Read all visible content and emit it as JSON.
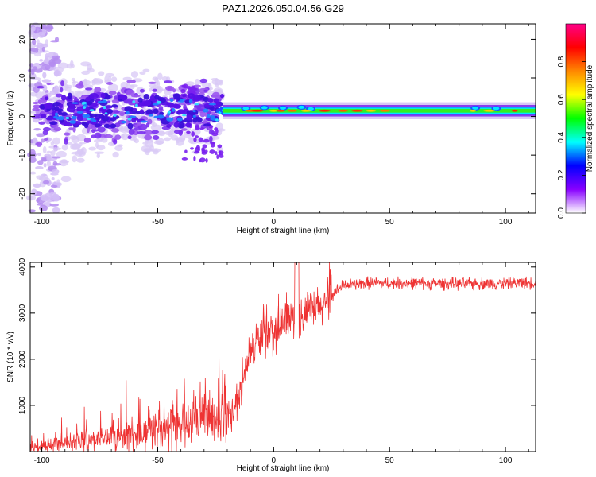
{
  "title": "PAZ1.2026.050.04.56.G29",
  "chart_data": [
    {
      "type": "heatmap",
      "xlabel": "Height of straight line (km)",
      "ylabel": "Frequency (Hz)",
      "xlim": [
        -105,
        113
      ],
      "ylim": [
        -25,
        24
      ],
      "xticks": [
        -100,
        -50,
        0,
        50,
        100
      ],
      "xtick_labels": [
        "-100",
        "-50",
        "0",
        "50",
        "100"
      ],
      "yticks": [
        -20,
        -10,
        0,
        10,
        20
      ],
      "ytick_labels": [
        "-20",
        "-10",
        "0",
        "10",
        "20"
      ],
      "colorbar": {
        "label": "Normalized spectral amplitude",
        "range": [
          0,
          1
        ],
        "ticks": [
          0.0,
          0.2,
          0.4,
          0.6,
          0.8
        ],
        "tick_labels": [
          "0.0",
          "0.2",
          "0.4",
          "0.6",
          "0.8"
        ],
        "colors": [
          "#ffffff",
          "#8800ff",
          "#0000ff",
          "#00ffff",
          "#00ff00",
          "#ffff00",
          "#ff8800",
          "#ff0000",
          "#ff0088"
        ]
      },
      "band": {
        "center_freq": 1.5,
        "clean_start_km": -22,
        "noisy_end_km": -22
      }
    },
    {
      "type": "line",
      "xlabel": "Height of straight line (km)",
      "ylabel": "SNR (10 * v/v)",
      "xlim": [
        -105,
        113
      ],
      "ylim": [
        0,
        4100
      ],
      "xticks": [
        -100,
        -50,
        0,
        50,
        100
      ],
      "xtick_labels": [
        "-100",
        "-50",
        "0",
        "50",
        "100"
      ],
      "yticks": [
        1000,
        2000,
        3000,
        4000
      ],
      "ytick_labels": [
        "1000",
        "2000",
        "3000",
        "4000"
      ],
      "line_color": "#ee3333",
      "trend": {
        "x": [
          -105,
          -90,
          -75,
          -60,
          -45,
          -30,
          -20,
          -15,
          -10,
          -5,
          0,
          5,
          10,
          15,
          20,
          25,
          30,
          40,
          60,
          80,
          100,
          113
        ],
        "y": [
          80,
          180,
          280,
          380,
          500,
          700,
          800,
          1200,
          2200,
          2500,
          2600,
          2800,
          2900,
          3000,
          3100,
          3400,
          3600,
          3650,
          3650,
          3630,
          3650,
          3660
        ]
      }
    }
  ]
}
